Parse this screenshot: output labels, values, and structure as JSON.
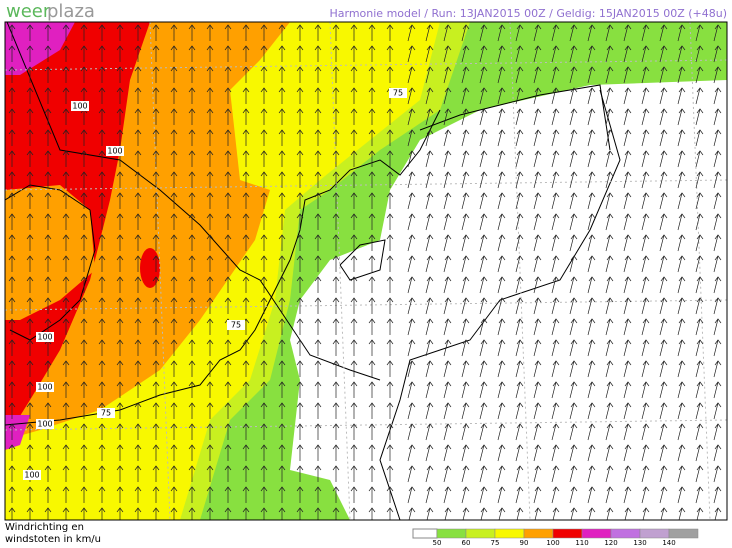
{
  "logo": {
    "first": "weer",
    "second": "plaza"
  },
  "header": {
    "title": "Harmonie model / Run: 13JAN2015 00Z / Geldig: 15JAN2015 00Z (+48u)"
  },
  "contour_labels": [
    "100",
    "100",
    "100",
    "100",
    "100",
    "100",
    "75",
    "75",
    "75"
  ],
  "legend": {
    "title": [
      "Windrichting en",
      "windstoten in km/u"
    ],
    "ticks": [
      50,
      60,
      75,
      90,
      100,
      110,
      120,
      130,
      140
    ],
    "colors": [
      "#88e040",
      "#c8f020",
      "#f8f800",
      "#ffa000",
      "#f00000",
      "#e020c0",
      "#c070e0",
      "#c0a0d0",
      "#a0a0a0"
    ]
  }
}
